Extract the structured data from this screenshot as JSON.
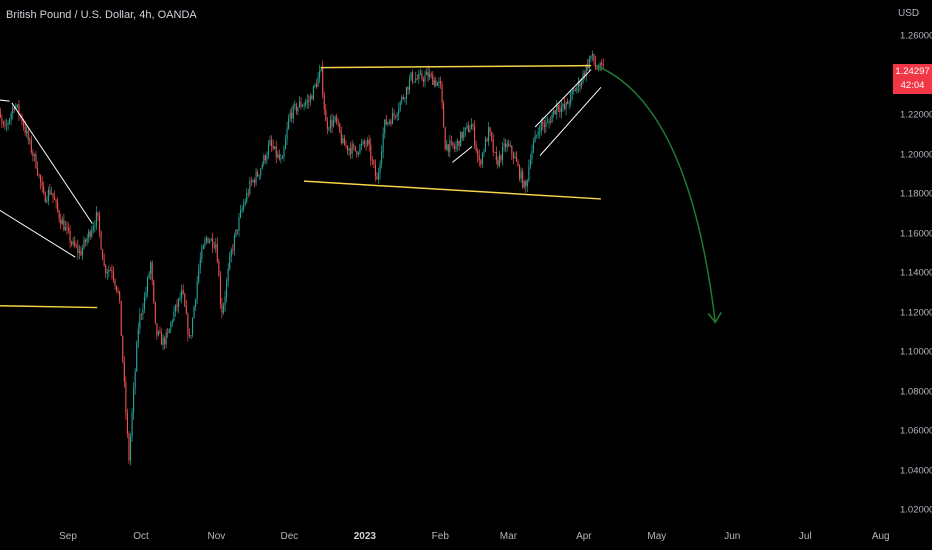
{
  "title": "British Pound / U.S. Dollar, 4h, OANDA",
  "currency": "USD",
  "last_price": {
    "value": "1.24297",
    "countdown": "42:04",
    "color": "#f23645"
  },
  "colors": {
    "up": "#26a69a",
    "down": "#ef5350",
    "trendline": "#ffffff",
    "level": "#f5d547",
    "forecast": "#1e7a34"
  },
  "chart_data": {
    "type": "candlestick",
    "y_axis": {
      "min": 1.02,
      "max": 1.26,
      "ticks": [
        "1.26000",
        "1.24000",
        "1.22000",
        "1.20000",
        "1.18000",
        "1.16000",
        "1.14000",
        "1.12000",
        "1.10000",
        "1.08000",
        "1.06000",
        "1.04000",
        "1.02000"
      ]
    },
    "x_axis": {
      "ticks": [
        {
          "label": "Sep",
          "date": "2022-09-01"
        },
        {
          "label": "Oct",
          "date": "2022-10-01"
        },
        {
          "label": "Nov",
          "date": "2022-11-01"
        },
        {
          "label": "Dec",
          "date": "2022-12-01"
        },
        {
          "label": "2023",
          "date": "2023-01-01",
          "bold": true
        },
        {
          "label": "Feb",
          "date": "2023-02-01"
        },
        {
          "label": "Mar",
          "date": "2023-03-01"
        },
        {
          "label": "Apr",
          "date": "2023-04-01"
        },
        {
          "label": "May",
          "date": "2023-05-01"
        },
        {
          "label": "Jun",
          "date": "2023-06-01"
        },
        {
          "label": "Jul",
          "date": "2023-07-01"
        },
        {
          "label": "Aug",
          "date": "2023-08-01"
        }
      ]
    },
    "price_path": [
      [
        "2022-08-01",
        1.215
      ],
      [
        "2022-08-03",
        1.221
      ],
      [
        "2022-08-06",
        1.212
      ],
      [
        "2022-08-10",
        1.226
      ],
      [
        "2022-08-13",
        1.218
      ],
      [
        "2022-08-16",
        1.206
      ],
      [
        "2022-08-19",
        1.195
      ],
      [
        "2022-08-22",
        1.178
      ],
      [
        "2022-08-25",
        1.182
      ],
      [
        "2022-08-28",
        1.17
      ],
      [
        "2022-08-31",
        1.162
      ],
      [
        "2022-09-03",
        1.154
      ],
      [
        "2022-09-06",
        1.15
      ],
      [
        "2022-09-09",
        1.158
      ],
      [
        "2022-09-11",
        1.164
      ],
      [
        "2022-09-13",
        1.169
      ],
      [
        "2022-09-16",
        1.142
      ],
      [
        "2022-09-19",
        1.142
      ],
      [
        "2022-09-22",
        1.128
      ],
      [
        "2022-09-24",
        1.085
      ],
      [
        "2022-09-26",
        1.045
      ],
      [
        "2022-09-28",
        1.08
      ],
      [
        "2022-09-30",
        1.115
      ],
      [
        "2022-10-03",
        1.13
      ],
      [
        "2022-10-05",
        1.145
      ],
      [
        "2022-10-07",
        1.11
      ],
      [
        "2022-10-10",
        1.105
      ],
      [
        "2022-10-12",
        1.108
      ],
      [
        "2022-10-14",
        1.118
      ],
      [
        "2022-10-18",
        1.13
      ],
      [
        "2022-10-21",
        1.105
      ],
      [
        "2022-10-25",
        1.145
      ],
      [
        "2022-10-28",
        1.158
      ],
      [
        "2022-11-01",
        1.155
      ],
      [
        "2022-11-03",
        1.12
      ],
      [
        "2022-11-04",
        1.125
      ],
      [
        "2022-11-07",
        1.15
      ],
      [
        "2022-11-11",
        1.17
      ],
      [
        "2022-11-15",
        1.185
      ],
      [
        "2022-11-18",
        1.19
      ],
      [
        "2022-11-23",
        1.205
      ],
      [
        "2022-11-28",
        1.195
      ],
      [
        "2022-12-01",
        1.22
      ],
      [
        "2022-12-05",
        1.225
      ],
      [
        "2022-12-09",
        1.227
      ],
      [
        "2022-12-14",
        1.242
      ],
      [
        "2022-12-16",
        1.215
      ],
      [
        "2022-12-20",
        1.217
      ],
      [
        "2022-12-23",
        1.205
      ],
      [
        "2022-12-28",
        1.202
      ],
      [
        "2023-01-02",
        1.206
      ],
      [
        "2023-01-06",
        1.186
      ],
      [
        "2023-01-09",
        1.215
      ],
      [
        "2023-01-13",
        1.22
      ],
      [
        "2023-01-17",
        1.23
      ],
      [
        "2023-01-20",
        1.239
      ],
      [
        "2023-01-23",
        1.238
      ],
      [
        "2023-01-27",
        1.24
      ],
      [
        "2023-02-01",
        1.235
      ],
      [
        "2023-02-03",
        1.205
      ],
      [
        "2023-02-07",
        1.203
      ],
      [
        "2023-02-10",
        1.21
      ],
      [
        "2023-02-14",
        1.215
      ],
      [
        "2023-02-17",
        1.195
      ],
      [
        "2023-02-21",
        1.212
      ],
      [
        "2023-02-24",
        1.195
      ],
      [
        "2023-02-28",
        1.205
      ],
      [
        "2023-03-03",
        1.2
      ],
      [
        "2023-03-08",
        1.182
      ],
      [
        "2023-03-10",
        1.2
      ],
      [
        "2023-03-14",
        1.215
      ],
      [
        "2023-03-17",
        1.215
      ],
      [
        "2023-03-21",
        1.225
      ],
      [
        "2023-03-24",
        1.223
      ],
      [
        "2023-03-28",
        1.232
      ],
      [
        "2023-03-31",
        1.238
      ],
      [
        "2023-04-04",
        1.25
      ],
      [
        "2023-04-06",
        1.244
      ],
      [
        "2023-04-09",
        1.243
      ]
    ],
    "annotations": [
      {
        "type": "line",
        "role": "resistance",
        "from": [
          "2022-12-14",
          1.244
        ],
        "to": [
          "2023-04-04",
          1.245
        ]
      },
      {
        "type": "line",
        "role": "support",
        "from": [
          "2022-12-07",
          1.1865
        ],
        "to": [
          "2023-04-08",
          1.1775
        ]
      },
      {
        "type": "line",
        "role": "level",
        "from": [
          "2022-08-01",
          1.1235
        ],
        "to": [
          "2022-09-13",
          1.1225
        ]
      },
      {
        "type": "line",
        "role": "channel",
        "from": [
          "2022-08-01",
          1.228
        ],
        "to": [
          "2022-08-08",
          1.227
        ]
      },
      {
        "type": "line",
        "role": "channel",
        "from": [
          "2022-08-09",
          1.226
        ],
        "to": [
          "2022-09-11",
          1.165
        ]
      },
      {
        "type": "line",
        "role": "channel",
        "from": [
          "2022-08-01",
          1.174
        ],
        "to": [
          "2022-09-04",
          1.148
        ]
      },
      {
        "type": "line",
        "role": "channel",
        "from": [
          "2023-02-06",
          1.196
        ],
        "to": [
          "2023-02-14",
          1.204
        ]
      },
      {
        "type": "line",
        "role": "channel",
        "from": [
          "2023-03-12",
          1.214
        ],
        "to": [
          "2023-04-04",
          1.243
        ]
      },
      {
        "type": "line",
        "role": "channel",
        "from": [
          "2023-03-14",
          1.1995
        ],
        "to": [
          "2023-04-08",
          1.234
        ]
      },
      {
        "type": "arrow",
        "role": "forecast",
        "from": [
          "2023-04-06",
          1.245
        ],
        "to": [
          "2023-05-25",
          1.115
        ]
      }
    ]
  }
}
